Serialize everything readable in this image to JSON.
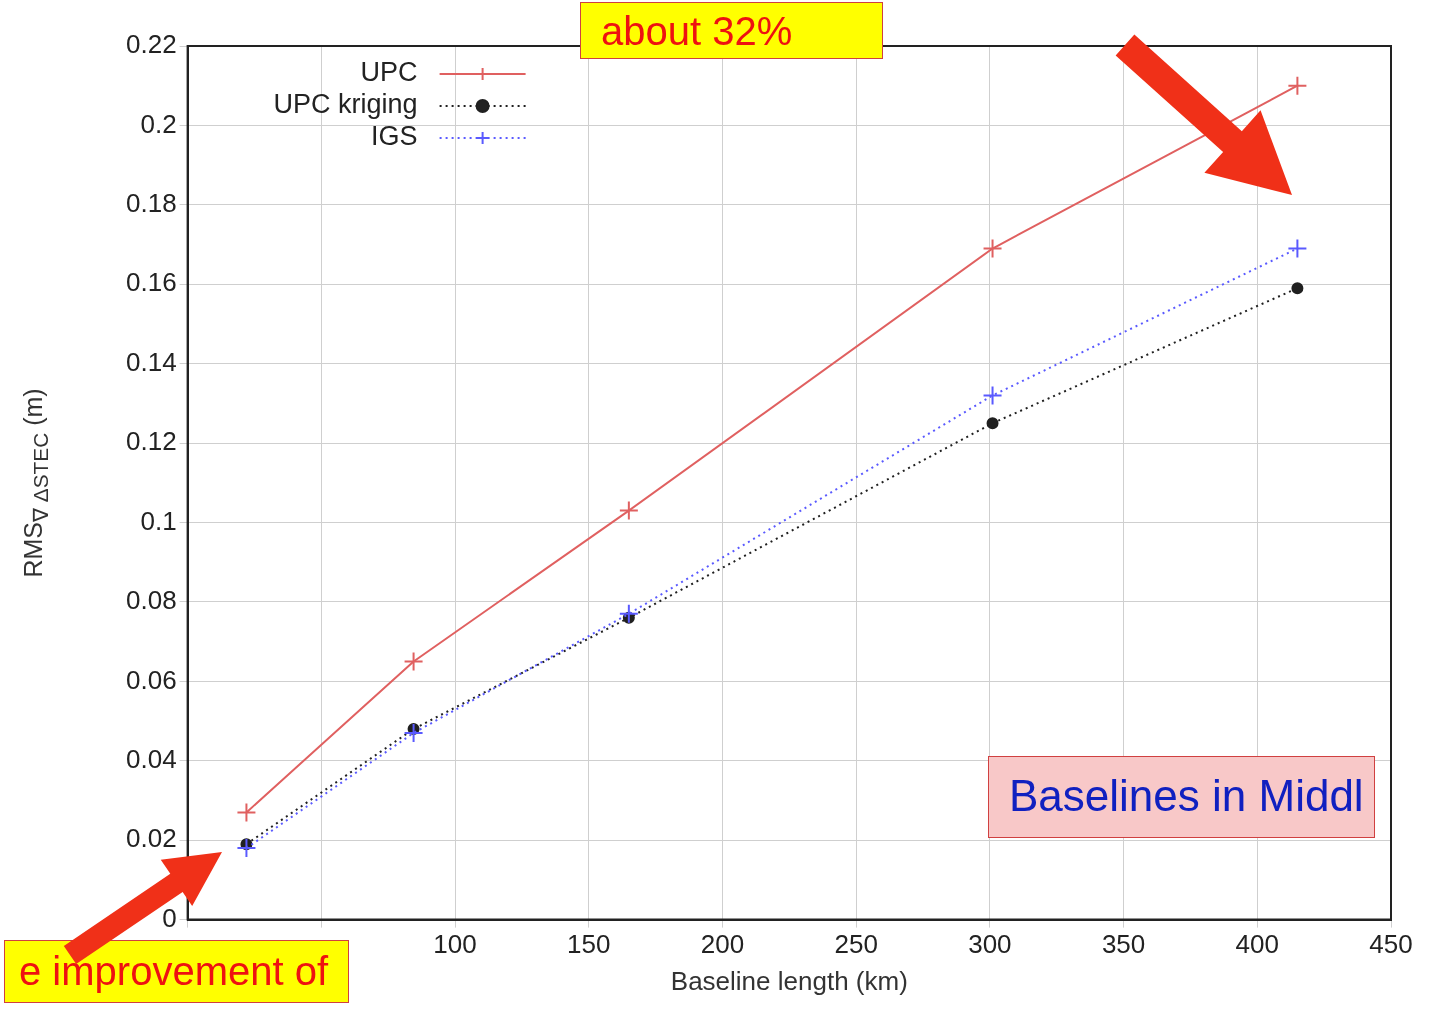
{
  "chart_data": {
    "type": "line",
    "xlabel": "Baseline length (km)",
    "ylabel": "RMS$_{∇ ΔSTEC}$ (m)",
    "xlim": [
      0,
      450
    ],
    "xticks": [
      {
        "value": 0,
        "label": null
      },
      {
        "value": 50,
        "label": null
      },
      100,
      150,
      200,
      250,
      300,
      350,
      400,
      450
    ],
    "ylim": [
      0,
      0.22
    ],
    "yticks": [
      0,
      0.02,
      0.04,
      0.06,
      0.08,
      0.1,
      0.12,
      0.14,
      0.16,
      0.18,
      0.2,
      0.22
    ],
    "grid": true,
    "legend": "top left",
    "x": [
      22,
      84.5,
      165,
      301,
      415
    ],
    "series": [
      {
        "name": "UPC",
        "color": "#e06060",
        "marker": "cross",
        "line_style": "solid",
        "values": [
          0.027,
          0.065,
          0.103,
          0.169,
          0.21
        ]
      },
      {
        "name": "UPC kriging",
        "color": "#202020",
        "marker": "circle",
        "line_style": "dotted",
        "values": [
          0.019,
          0.048,
          0.076,
          0.125,
          0.159
        ]
      },
      {
        "name": "IGS",
        "color": "#5a5aff",
        "marker": "cross",
        "line_style": "dotted",
        "values": [
          0.018,
          0.047,
          0.077,
          0.132,
          0.169
        ]
      }
    ],
    "annotations": [
      "about 32%",
      "e improvement of",
      "Baselines in Middl"
    ]
  }
}
